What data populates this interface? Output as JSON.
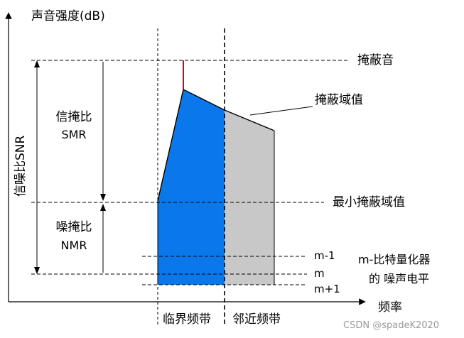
{
  "diagram": {
    "y_axis_label": "声音强度(dB)",
    "x_axis_label": "频率",
    "snr_label": "信噪比SNR",
    "smr_label_cn": "信掩比",
    "smr_label_en": "SMR",
    "nmr_label_cn": "噪掩比",
    "nmr_label_en": "NMR",
    "masker_label": "掩蔽音",
    "masking_threshold_label": "掩蔽域值",
    "min_threshold_label": "最小掩蔽域值",
    "m_minus_1": "m-1",
    "m": "m",
    "m_plus_1": "m+1",
    "quant_noise_line1": "m-比特量化器",
    "quant_noise_line2": "的 噪声电平",
    "critical_band_label": "临界频带",
    "adjacent_band_label": "邻近频带",
    "colors": {
      "critical_band_fill": "#0a78ea",
      "adjacent_band_fill": "#c8c8c8",
      "masker_line": "#e00000"
    }
  },
  "watermark": "CSDN @spadeK2020"
}
